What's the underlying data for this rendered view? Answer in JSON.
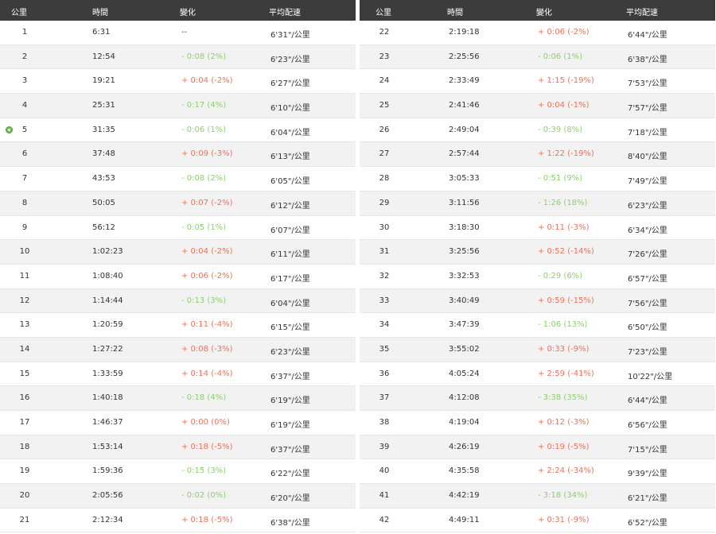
{
  "headers": {
    "km": "公里",
    "time": "時間",
    "change": "變化",
    "pace": "平均配速"
  },
  "colors": {
    "header_bg": "#3c3c3c",
    "positive": "#e9715a",
    "negative": "#8ccf6d",
    "marker": "#6cc04a"
  },
  "left_rows": [
    {
      "km": "1",
      "time": "6:31",
      "change": "--",
      "pace": "6'31\"/公里",
      "trend": "neutral"
    },
    {
      "km": "2",
      "time": "12:54",
      "change": "- 0:08 (2%)",
      "pace": "6'23\"/公里",
      "trend": "neg"
    },
    {
      "km": "3",
      "time": "19:21",
      "change": "+ 0:04 (-2%)",
      "pace": "6'27\"/公里",
      "trend": "pos"
    },
    {
      "km": "4",
      "time": "25:31",
      "change": "- 0:17 (4%)",
      "pace": "6'10\"/公里",
      "trend": "neg"
    },
    {
      "km": "5",
      "time": "31:35",
      "change": "- 0:06 (1%)",
      "pace": "6'04\"/公里",
      "trend": "neg",
      "marker": true
    },
    {
      "km": "6",
      "time": "37:48",
      "change": "+ 0:09 (-3%)",
      "pace": "6'13\"/公里",
      "trend": "pos"
    },
    {
      "km": "7",
      "time": "43:53",
      "change": "- 0:08 (2%)",
      "pace": "6'05\"/公里",
      "trend": "neg"
    },
    {
      "km": "8",
      "time": "50:05",
      "change": "+ 0:07 (-2%)",
      "pace": "6'12\"/公里",
      "trend": "pos"
    },
    {
      "km": "9",
      "time": "56:12",
      "change": "- 0:05 (1%)",
      "pace": "6'07\"/公里",
      "trend": "neg"
    },
    {
      "km": "10",
      "time": "1:02:23",
      "change": "+ 0:04 (-2%)",
      "pace": "6'11\"/公里",
      "trend": "pos"
    },
    {
      "km": "11",
      "time": "1:08:40",
      "change": "+ 0:06 (-2%)",
      "pace": "6'17\"/公里",
      "trend": "pos"
    },
    {
      "km": "12",
      "time": "1:14:44",
      "change": "- 0:13 (3%)",
      "pace": "6'04\"/公里",
      "trend": "neg"
    },
    {
      "km": "13",
      "time": "1:20:59",
      "change": "+ 0:11 (-4%)",
      "pace": "6'15\"/公里",
      "trend": "pos"
    },
    {
      "km": "14",
      "time": "1:27:22",
      "change": "+ 0:08 (-3%)",
      "pace": "6'23\"/公里",
      "trend": "pos"
    },
    {
      "km": "15",
      "time": "1:33:59",
      "change": "+ 0:14 (-4%)",
      "pace": "6'37\"/公里",
      "trend": "pos"
    },
    {
      "km": "16",
      "time": "1:40:18",
      "change": "- 0:18 (4%)",
      "pace": "6'19\"/公里",
      "trend": "neg"
    },
    {
      "km": "17",
      "time": "1:46:37",
      "change": "+ 0:00 (0%)",
      "pace": "6'19\"/公里",
      "trend": "pos"
    },
    {
      "km": "18",
      "time": "1:53:14",
      "change": "+ 0:18 (-5%)",
      "pace": "6'37\"/公里",
      "trend": "pos"
    },
    {
      "km": "19",
      "time": "1:59:36",
      "change": "- 0:15 (3%)",
      "pace": "6'22\"/公里",
      "trend": "neg"
    },
    {
      "km": "20",
      "time": "2:05:56",
      "change": "- 0:02 (0%)",
      "pace": "6'20\"/公里",
      "trend": "neg"
    },
    {
      "km": "21",
      "time": "2:12:34",
      "change": "+ 0:18 (-5%)",
      "pace": "6'38\"/公里",
      "trend": "pos"
    }
  ],
  "right_rows": [
    {
      "km": "22",
      "time": "2:19:18",
      "change": "+ 0:06 (-2%)",
      "pace": "6'44\"/公里",
      "trend": "pos"
    },
    {
      "km": "23",
      "time": "2:25:56",
      "change": "- 0:06 (1%)",
      "pace": "6'38\"/公里",
      "trend": "neg"
    },
    {
      "km": "24",
      "time": "2:33:49",
      "change": "+ 1:15 (-19%)",
      "pace": "7'53\"/公里",
      "trend": "pos"
    },
    {
      "km": "25",
      "time": "2:41:46",
      "change": "+ 0:04 (-1%)",
      "pace": "7'57\"/公里",
      "trend": "pos"
    },
    {
      "km": "26",
      "time": "2:49:04",
      "change": "- 0:39 (8%)",
      "pace": "7'18\"/公里",
      "trend": "neg"
    },
    {
      "km": "27",
      "time": "2:57:44",
      "change": "+ 1:22 (-19%)",
      "pace": "8'40\"/公里",
      "trend": "pos"
    },
    {
      "km": "28",
      "time": "3:05:33",
      "change": "- 0:51 (9%)",
      "pace": "7'49\"/公里",
      "trend": "neg"
    },
    {
      "km": "29",
      "time": "3:11:56",
      "change": "- 1:26 (18%)",
      "pace": "6'23\"/公里",
      "trend": "neg"
    },
    {
      "km": "30",
      "time": "3:18:30",
      "change": "+ 0:11 (-3%)",
      "pace": "6'34\"/公里",
      "trend": "pos"
    },
    {
      "km": "31",
      "time": "3:25:56",
      "change": "+ 0:52 (-14%)",
      "pace": "7'26\"/公里",
      "trend": "pos"
    },
    {
      "km": "32",
      "time": "3:32:53",
      "change": "- 0:29 (6%)",
      "pace": "6'57\"/公里",
      "trend": "neg"
    },
    {
      "km": "33",
      "time": "3:40:49",
      "change": "+ 0:59 (-15%)",
      "pace": "7'56\"/公里",
      "trend": "pos"
    },
    {
      "km": "34",
      "time": "3:47:39",
      "change": "- 1:06 (13%)",
      "pace": "6'50\"/公里",
      "trend": "neg"
    },
    {
      "km": "35",
      "time": "3:55:02",
      "change": "+ 0:33 (-9%)",
      "pace": "7'23\"/公里",
      "trend": "pos"
    },
    {
      "km": "36",
      "time": "4:05:24",
      "change": "+ 2:59 (-41%)",
      "pace": "10'22\"/公里",
      "trend": "pos"
    },
    {
      "km": "37",
      "time": "4:12:08",
      "change": "- 3:38 (35%)",
      "pace": "6'44\"/公里",
      "trend": "neg"
    },
    {
      "km": "38",
      "time": "4:19:04",
      "change": "+ 0:12 (-3%)",
      "pace": "6'56\"/公里",
      "trend": "pos"
    },
    {
      "km": "39",
      "time": "4:26:19",
      "change": "+ 0:19 (-5%)",
      "pace": "7'15\"/公里",
      "trend": "pos"
    },
    {
      "km": "40",
      "time": "4:35:58",
      "change": "+ 2:24 (-34%)",
      "pace": "9'39\"/公里",
      "trend": "pos"
    },
    {
      "km": "41",
      "time": "4:42:19",
      "change": "- 3:18 (34%)",
      "pace": "6'21\"/公里",
      "trend": "neg"
    },
    {
      "km": "42",
      "time": "4:49:11",
      "change": "+ 0:31 (-9%)",
      "pace": "6'52\"/公里",
      "trend": "pos"
    }
  ]
}
